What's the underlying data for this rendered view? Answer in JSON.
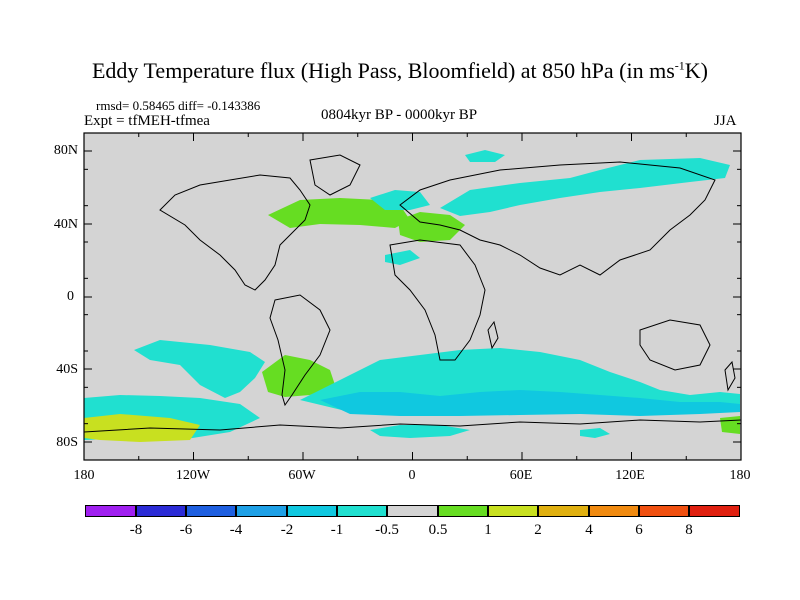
{
  "figure": {
    "title_main": "Eddy Temperature flux (High Pass, Bloomfield) at 850 hPa (in ms",
    "title_sup": "-1",
    "title_end": "K)",
    "stats": "rmsd= 0.58465  diff= -0.143386",
    "expt": "Expt = tfMEH-tfmea",
    "period": "0804kyr BP - 0000kyr BP",
    "season": "JJA"
  },
  "axes": {
    "y_ticks": [
      "80N",
      "40N",
      "0",
      "40S",
      "80S"
    ],
    "x_ticks": [
      "180",
      "120W",
      "60W",
      "0",
      "60E",
      "120E",
      "180"
    ]
  },
  "colorbar": {
    "labels": [
      "-8",
      "-6",
      "-4",
      "-2",
      "-1",
      "-0.5",
      "0.5",
      "1",
      "2",
      "4",
      "6",
      "8"
    ],
    "colors": [
      "#a020f0",
      "#2b2bd6",
      "#1e5fe0",
      "#1ea0e6",
      "#10c8e0",
      "#20e0d0",
      "#d4d4d4",
      "#66dd22",
      "#c8e020",
      "#e0b010",
      "#f08a10",
      "#f05010",
      "#e02010"
    ]
  },
  "map": {
    "background_color": "#d4d4d4",
    "level_colors": {
      "neg_1": "#20e0d0",
      "neg_2": "#10c8e0",
      "pos_05": "#66dd22",
      "pos_1": "#c8e020"
    }
  }
}
